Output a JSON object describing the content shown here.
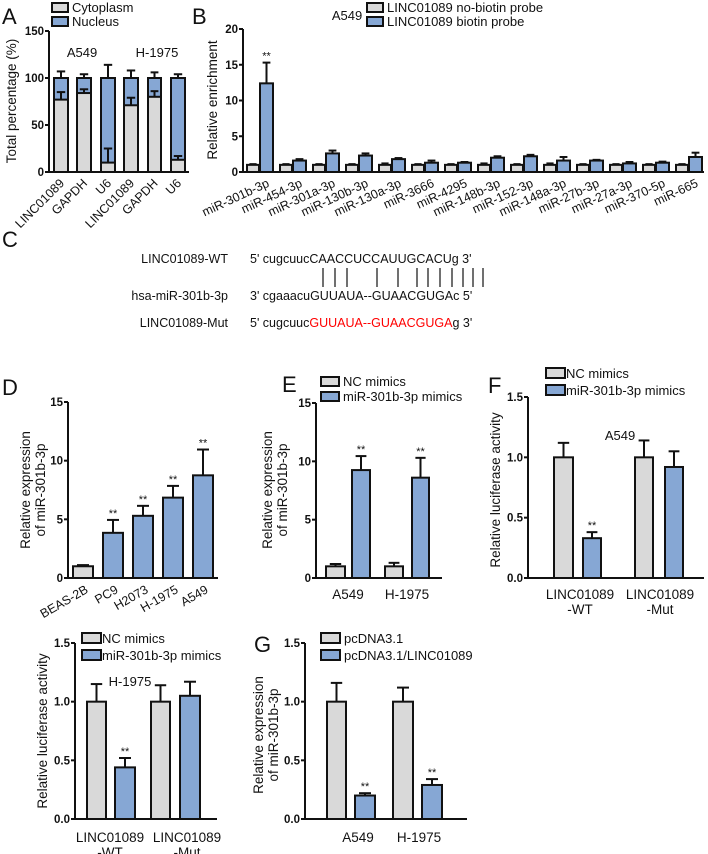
{
  "colors": {
    "gray": "#d9d9d9",
    "blue": "#86a7d4",
    "axis": "#111111",
    "mut": "#ff0000"
  },
  "chart_data": [
    {
      "panel": "A",
      "type": "bar",
      "stacked": true,
      "ylabel": [
        "Total percentage (%)"
      ],
      "ylim": [
        0,
        150
      ],
      "yticks": [
        "0",
        "50",
        "100",
        "150"
      ],
      "categories": [
        "LINC01089",
        "GAPDH",
        "U6",
        "LINC01089",
        "GAPDH",
        "U6"
      ],
      "annotations": [
        "A549",
        "H-1975"
      ],
      "series": [
        {
          "name": "Cytoplasm",
          "color": "#d9d9d9",
          "values": [
            77,
            84,
            10,
            71,
            80,
            13
          ],
          "errors": [
            8,
            4,
            15,
            8,
            6,
            4
          ],
          "sig": []
        },
        {
          "name": "Nucleus",
          "color": "#86a7d4",
          "values": [
            23,
            16,
            90,
            29,
            20,
            87
          ],
          "errors": [
            7,
            4,
            14,
            8,
            6,
            4
          ],
          "sig": []
        }
      ]
    },
    {
      "panel": "B",
      "type": "bar",
      "ylabel": [
        "Relative enrichment"
      ],
      "ylim": [
        0,
        20
      ],
      "yticks": [
        "0",
        "5",
        "10",
        "15",
        "20"
      ],
      "categories": [
        "miR-301b-3p",
        "miR-454-3p",
        "miR-301a-3p",
        "miR-130b-3p",
        "miR-130a-3p",
        "miR-3666",
        "miR-4295",
        "miR-148b-3p",
        "miR-152-3p",
        "miR-148a-3p",
        "miR-27b-3p",
        "miR-27a-3p",
        "miR-370-5p",
        "miR-665"
      ],
      "annotations": [
        "A549"
      ],
      "series": [
        {
          "name": "LINC01089 no-biotin probe",
          "color": "#d9d9d9",
          "values": [
            1,
            1,
            1,
            1,
            1,
            1,
            1,
            1,
            1,
            1,
            1,
            1,
            1,
            1
          ],
          "errors": [
            0.1,
            0.1,
            0.1,
            0.1,
            0.2,
            0.1,
            0.1,
            0.2,
            0.1,
            0.2,
            0.1,
            0.1,
            0.1,
            0.1
          ],
          "sig": []
        },
        {
          "name": "LINC01089 biotin probe",
          "color": "#86a7d4",
          "values": [
            12.4,
            1.6,
            2.6,
            2.3,
            1.8,
            1.3,
            1.3,
            2.0,
            2.2,
            1.6,
            1.6,
            1.2,
            1.3,
            2.1
          ],
          "errors": [
            2.9,
            0.2,
            0.4,
            0.3,
            0.15,
            0.3,
            0.1,
            0.2,
            0.2,
            0.5,
            0.1,
            0.2,
            0.15,
            0.6
          ],
          "sig": [
            "**",
            "",
            "",
            "",
            "",
            "",
            "",
            "",
            "",
            "",
            "",
            "",
            "",
            ""
          ]
        }
      ]
    },
    {
      "panel": "D",
      "type": "bar",
      "ylabel": [
        "Relative expression",
        "of miR-301b-3p"
      ],
      "ylim": [
        0,
        15
      ],
      "yticks": [
        "0",
        "5",
        "10",
        "15"
      ],
      "categories": [
        "BEAS-2B",
        "PC9",
        "H2073",
        "H-1975",
        "A549"
      ],
      "annotations": [],
      "series": [
        {
          "name": "Expression",
          "values": [
            1.0,
            3.85,
            5.3,
            6.85,
            8.75
          ],
          "errors": [
            0.1,
            1.1,
            0.85,
            1.0,
            2.2
          ],
          "sig": [
            "",
            "**",
            "**",
            "**",
            "**"
          ]
        }
      ]
    },
    {
      "panel": "E",
      "type": "bar",
      "ylabel": [
        "Relative expression",
        "of miR-301b-3p"
      ],
      "ylim": [
        0,
        15
      ],
      "yticks": [
        "0",
        "5",
        "10",
        "15"
      ],
      "categories": [
        "A549",
        "H-1975"
      ],
      "annotations": [],
      "series": [
        {
          "name": "NC mimics",
          "color": "#d9d9d9",
          "values": [
            1.0,
            1.0
          ],
          "errors": [
            0.2,
            0.3
          ],
          "sig": [
            "",
            ""
          ]
        },
        {
          "name": "miR-301b-3p mimics",
          "color": "#86a7d4",
          "values": [
            9.25,
            8.6
          ],
          "errors": [
            1.2,
            1.7
          ],
          "sig": [
            "**",
            "**"
          ]
        }
      ]
    },
    {
      "panel": "F",
      "type": "bar",
      "ylabel": [
        "Relative luciferase activity"
      ],
      "ylim": [
        0,
        1.5
      ],
      "yticks": [
        "0.0",
        "0.5",
        "1.0",
        "1.5"
      ],
      "categories": [
        [
          "LINC01089",
          "-WT"
        ],
        [
          "LINC01089",
          "-Mut"
        ]
      ],
      "annotations": [
        "A549"
      ],
      "series": [
        {
          "name": "NC mimics",
          "color": "#d9d9d9",
          "values": [
            1.0,
            1.0
          ],
          "errors": [
            0.12,
            0.14
          ],
          "sig": [
            "",
            ""
          ]
        },
        {
          "name": "miR-301b-3p mimics",
          "color": "#86a7d4",
          "values": [
            0.33,
            0.92
          ],
          "errors": [
            0.05,
            0.13
          ],
          "sig": [
            "**",
            ""
          ]
        }
      ]
    },
    {
      "panel": "",
      "type": "bar",
      "ylabel": [
        "Relative luciferase activity"
      ],
      "ylim": [
        0,
        1.5
      ],
      "yticks": [
        "0.0",
        "0.5",
        "1.0",
        "1.5"
      ],
      "categories": [
        [
          "LINC01089",
          "-WT"
        ],
        [
          "LINC01089",
          "-Mut"
        ]
      ],
      "annotations": [
        "H-1975"
      ],
      "series": [
        {
          "name": "NC mimics",
          "color": "#d9d9d9",
          "values": [
            1.0,
            1.0
          ],
          "errors": [
            0.15,
            0.14
          ],
          "sig": [
            "",
            ""
          ]
        },
        {
          "name": "miR-301b-3p mimics",
          "color": "#86a7d4",
          "values": [
            0.44,
            1.05
          ],
          "errors": [
            0.08,
            0.12
          ],
          "sig": [
            "**",
            ""
          ]
        }
      ]
    },
    {
      "panel": "G",
      "type": "bar",
      "ylabel": [
        "Relative expression",
        "of miR-301b-3p"
      ],
      "ylim": [
        0,
        1.5
      ],
      "yticks": [
        "0.0",
        "0.5",
        "1.0",
        "1.5"
      ],
      "categories": [
        "A549",
        "H-1975"
      ],
      "annotations": [],
      "series": [
        {
          "name": "pcDNA3.1",
          "color": "#d9d9d9",
          "values": [
            1.0,
            1.0
          ],
          "errors": [
            0.16,
            0.12
          ],
          "sig": [
            "",
            ""
          ]
        },
        {
          "name": "pcDNA3.1/LINC01089",
          "color": "#86a7d4",
          "values": [
            0.2,
            0.29
          ],
          "errors": [
            0.02,
            0.05
          ],
          "sig": [
            "**",
            "**"
          ]
        }
      ]
    }
  ],
  "alignment": {
    "panel": "C",
    "rows": [
      {
        "label": "LINC01089-WT",
        "prefix": "5' cugcuuc",
        "core": "CAACCUCCAUUGCACU",
        "suffix": "g 3'",
        "mutant": false
      },
      {
        "label": "hsa-miR-301b-3p",
        "prefix": "3' cgaaacu",
        "core": "GUUAUA--GUAACGUGA",
        "suffix": "c 5'",
        "mutant": false
      },
      {
        "label": "LINC01089-Mut",
        "prefix": "5' cugcuuc",
        "core": "GUUAUA--GUAACGUGA",
        "suffix": "g 3'",
        "mutant": true
      }
    ]
  }
}
